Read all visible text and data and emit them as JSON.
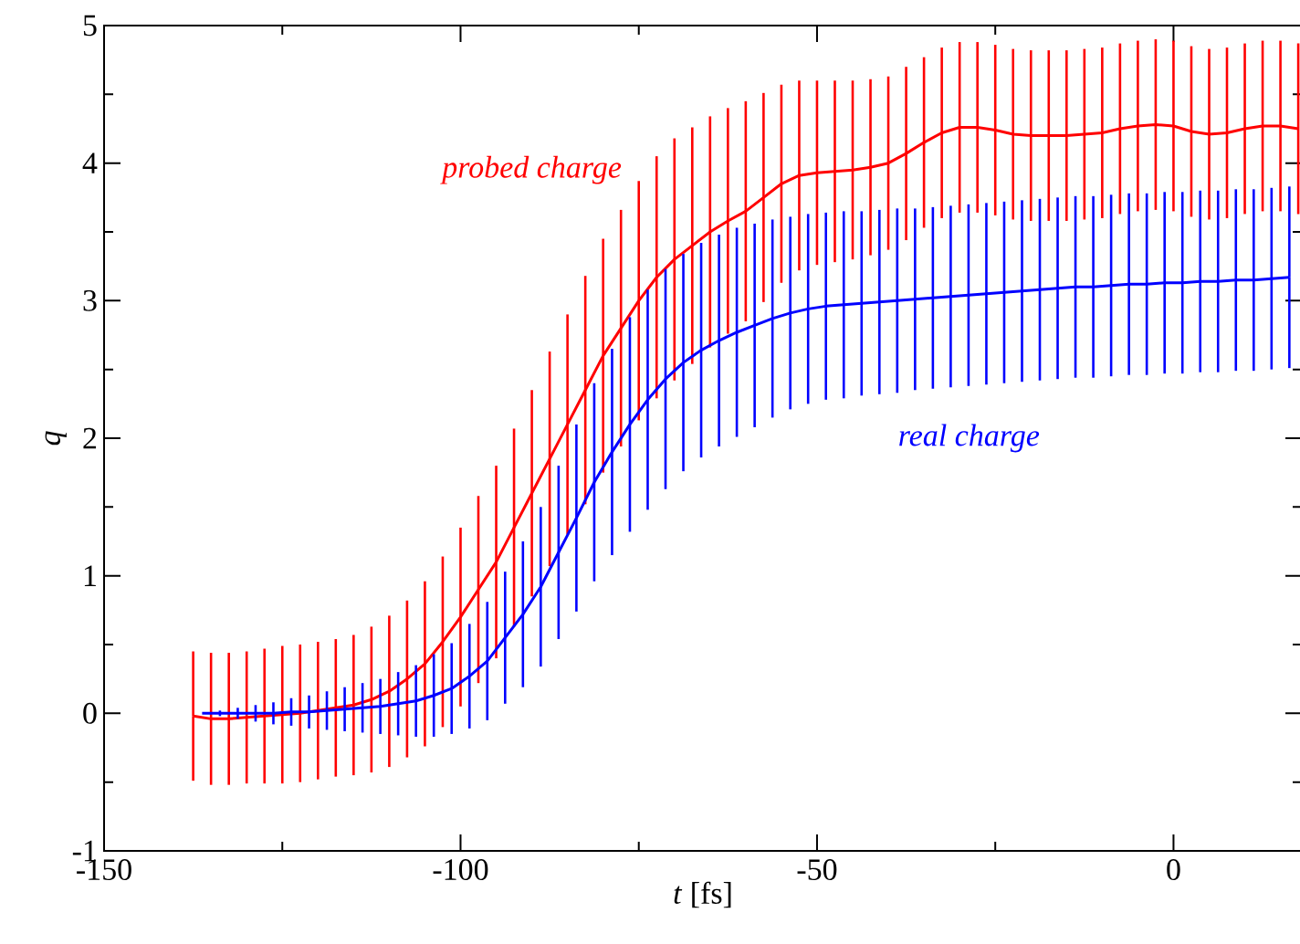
{
  "chart_data": {
    "type": "line",
    "xlabel": "*t*  [fs]",
    "ylabel": "q",
    "xlim": [
      -150,
      18
    ],
    "ylim": [
      -1,
      5
    ],
    "xticks": [
      -150,
      -100,
      -50,
      0
    ],
    "yticks": [
      -1,
      0,
      1,
      2,
      3,
      4,
      5
    ],
    "series": [
      {
        "name": "probed charge",
        "color": "#ff0000",
        "x": [
          -137.5,
          -135,
          -132.5,
          -130,
          -127.5,
          -125,
          -122.5,
          -120,
          -117.5,
          -115,
          -112.5,
          -110,
          -107.5,
          -105,
          -102.5,
          -100,
          -97.5,
          -95,
          -92.5,
          -90,
          -87.5,
          -85,
          -82.5,
          -80,
          -77.5,
          -75,
          -72.5,
          -70,
          -67.5,
          -65,
          -62.5,
          -60,
          -57.5,
          -55,
          -52.5,
          -50,
          -47.5,
          -45,
          -42.5,
          -40,
          -37.5,
          -35,
          -32.5,
          -30,
          -27.5,
          -25,
          -22.5,
          -20,
          -17.5,
          -15,
          -12.5,
          -10,
          -7.5,
          -5,
          -2.5,
          0,
          2.5,
          5,
          7.5,
          10,
          12.5,
          15,
          17.5
        ],
        "values": [
          -0.02,
          -0.04,
          -0.04,
          -0.03,
          -0.02,
          -0.01,
          0.0,
          0.02,
          0.04,
          0.06,
          0.1,
          0.16,
          0.25,
          0.36,
          0.52,
          0.7,
          0.9,
          1.1,
          1.35,
          1.6,
          1.85,
          2.1,
          2.35,
          2.6,
          2.8,
          3.0,
          3.17,
          3.3,
          3.4,
          3.5,
          3.58,
          3.65,
          3.75,
          3.85,
          3.91,
          3.93,
          3.94,
          3.95,
          3.97,
          4.0,
          4.07,
          4.15,
          4.22,
          4.26,
          4.26,
          4.24,
          4.21,
          4.2,
          4.2,
          4.2,
          4.21,
          4.22,
          4.25,
          4.27,
          4.28,
          4.27,
          4.23,
          4.21,
          4.22,
          4.25,
          4.27,
          4.27,
          4.25
        ],
        "errors": [
          0.47,
          0.48,
          0.48,
          0.48,
          0.49,
          0.5,
          0.5,
          0.5,
          0.5,
          0.51,
          0.53,
          0.55,
          0.57,
          0.6,
          0.62,
          0.65,
          0.68,
          0.7,
          0.72,
          0.75,
          0.78,
          0.8,
          0.83,
          0.85,
          0.86,
          0.87,
          0.88,
          0.88,
          0.86,
          0.84,
          0.82,
          0.8,
          0.76,
          0.72,
          0.69,
          0.67,
          0.66,
          0.65,
          0.64,
          0.63,
          0.63,
          0.62,
          0.62,
          0.62,
          0.62,
          0.62,
          0.62,
          0.62,
          0.62,
          0.62,
          0.62,
          0.62,
          0.62,
          0.62,
          0.62,
          0.62,
          0.62,
          0.62,
          0.62,
          0.62,
          0.62,
          0.62,
          0.62
        ]
      },
      {
        "name": "real charge",
        "color": "#0000ff",
        "x": [
          -136.25,
          -133.75,
          -131.25,
          -128.75,
          -126.25,
          -123.75,
          -121.25,
          -118.75,
          -116.25,
          -113.75,
          -111.25,
          -108.75,
          -106.25,
          -103.75,
          -101.25,
          -98.75,
          -96.25,
          -93.75,
          -91.25,
          -88.75,
          -86.25,
          -83.75,
          -81.25,
          -78.75,
          -76.25,
          -73.75,
          -71.25,
          -68.75,
          -66.25,
          -63.75,
          -61.25,
          -58.75,
          -56.25,
          -53.75,
          -51.25,
          -48.75,
          -46.25,
          -43.75,
          -41.25,
          -38.75,
          -36.25,
          -33.75,
          -31.25,
          -28.75,
          -26.25,
          -23.75,
          -21.25,
          -18.75,
          -16.25,
          -13.75,
          -11.25,
          -8.75,
          -6.25,
          -3.75,
          -1.25,
          1.25,
          3.75,
          6.25,
          8.75,
          11.25,
          13.75,
          16.25
        ],
        "values": [
          0.0,
          0.0,
          0.0,
          0.0,
          0.0,
          0.01,
          0.01,
          0.02,
          0.03,
          0.04,
          0.05,
          0.07,
          0.09,
          0.13,
          0.18,
          0.27,
          0.38,
          0.55,
          0.72,
          0.92,
          1.17,
          1.42,
          1.68,
          1.9,
          2.1,
          2.28,
          2.43,
          2.55,
          2.64,
          2.71,
          2.77,
          2.82,
          2.87,
          2.91,
          2.94,
          2.96,
          2.97,
          2.98,
          2.99,
          3.0,
          3.01,
          3.02,
          3.03,
          3.04,
          3.05,
          3.06,
          3.07,
          3.08,
          3.09,
          3.1,
          3.1,
          3.11,
          3.12,
          3.12,
          3.13,
          3.13,
          3.14,
          3.14,
          3.15,
          3.15,
          3.16,
          3.17
        ],
        "errors": [
          0.0,
          0.02,
          0.04,
          0.06,
          0.08,
          0.1,
          0.12,
          0.14,
          0.16,
          0.18,
          0.2,
          0.23,
          0.26,
          0.3,
          0.33,
          0.38,
          0.43,
          0.48,
          0.53,
          0.58,
          0.63,
          0.68,
          0.72,
          0.75,
          0.78,
          0.8,
          0.8,
          0.79,
          0.78,
          0.77,
          0.76,
          0.74,
          0.72,
          0.7,
          0.69,
          0.68,
          0.68,
          0.67,
          0.67,
          0.67,
          0.66,
          0.66,
          0.66,
          0.66,
          0.66,
          0.66,
          0.66,
          0.66,
          0.66,
          0.66,
          0.66,
          0.66,
          0.66,
          0.66,
          0.66,
          0.66,
          0.66,
          0.66,
          0.66,
          0.66,
          0.66,
          0.66
        ]
      }
    ]
  }
}
